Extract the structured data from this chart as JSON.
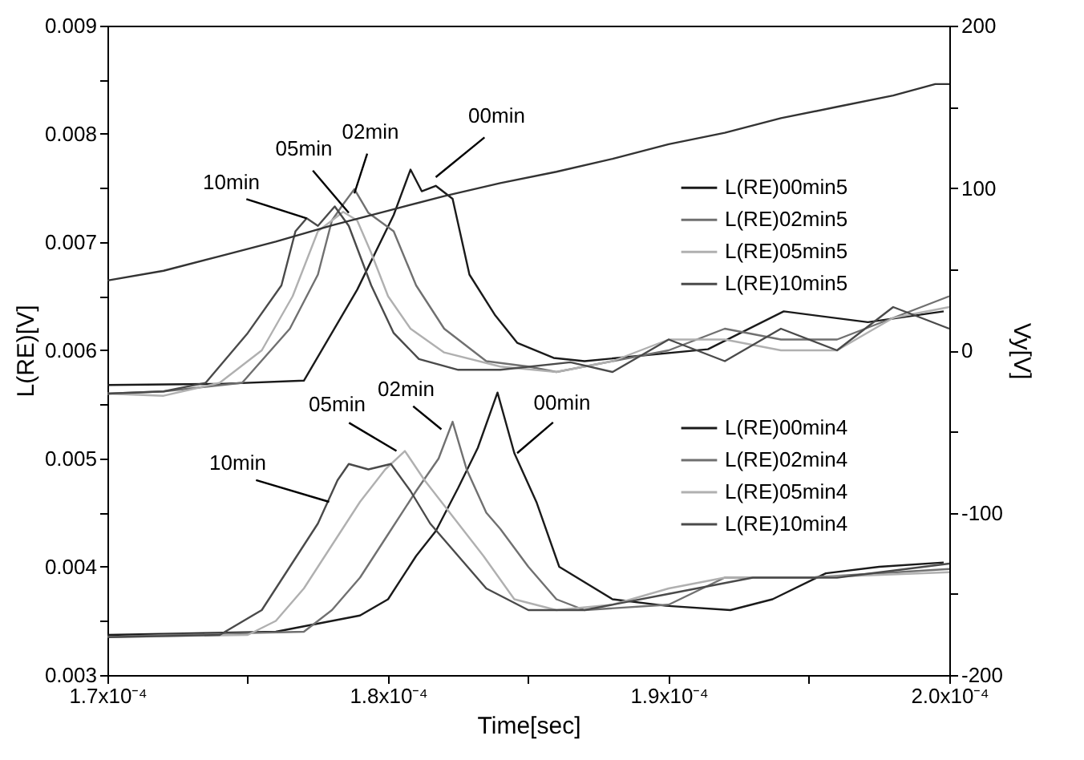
{
  "chart_data": {
    "type": "line",
    "xlabel": "Time[sec]",
    "ylabel": "L(RE)[V]",
    "y2label": "Vy[V]",
    "legend": "right",
    "xlim": [
      0.00017,
      0.0002
    ],
    "xticks": [
      {
        "value": 0.00017,
        "label": "1.7x10⁻⁴"
      },
      {
        "value": 0.000175,
        "label": null
      },
      {
        "value": 0.00018,
        "label": "1.8x10⁻⁴"
      },
      {
        "value": 0.000185,
        "label": null
      },
      {
        "value": 0.00019,
        "label": "1.9x10⁻⁴"
      },
      {
        "value": 0.000195,
        "label": null
      },
      {
        "value": 0.0002,
        "label": "2.0x10⁻⁴"
      }
    ],
    "ylim": [
      0.003,
      0.009
    ],
    "yticks": [
      0.003,
      {
        "value": 0.0035,
        "label": null
      },
      0.004,
      {
        "value": 0.0045,
        "label": null
      },
      0.005,
      {
        "value": 0.0055,
        "label": null
      },
      0.006,
      {
        "value": 0.0065,
        "label": null
      },
      0.007,
      {
        "value": 0.0075,
        "label": null
      },
      0.008,
      {
        "value": 0.0085,
        "label": null
      },
      0.009
    ],
    "y2lim": [
      -200,
      200
    ],
    "y2ticks": [
      -200,
      {
        "value": -150,
        "label": null
      },
      -100,
      {
        "value": -50,
        "label": null
      },
      0,
      {
        "value": 50,
        "label": null
      },
      100,
      {
        "value": 150,
        "label": null
      },
      200
    ],
    "series": [
      {
        "name": "L(RE)00min5",
        "color": "#1a1a1a",
        "x": [
          0.00017,
          0.000174,
          0.000177,
          0.0001789,
          0.0001802,
          0.0001808,
          0.0001812,
          0.0001817,
          0.0001823,
          0.0001829,
          0.0001838,
          0.0001846,
          0.0001859,
          0.000187,
          0.0001914,
          0.0001941,
          0.0001971,
          0.0001998
        ],
        "values": [
          0.00568,
          0.00569,
          0.00572,
          0.00656,
          0.00725,
          0.00767,
          0.00747,
          0.00752,
          0.0074,
          0.0067,
          0.00633,
          0.00607,
          0.00593,
          0.0059,
          0.00601,
          0.00636,
          0.00626,
          0.00636
        ]
      },
      {
        "name": "L(RE)02min5",
        "color": "#707070",
        "x": [
          0.00017,
          0.000172,
          0.0001748,
          0.0001765,
          0.0001775,
          0.000178,
          0.0001784,
          0.0001788,
          0.0001793,
          0.0001802,
          0.000181,
          0.000182,
          0.0001835,
          0.000185,
          0.000186,
          0.000188,
          0.00019,
          0.000192,
          0.000194,
          0.000196,
          0.000198,
          0.0002
        ],
        "values": [
          0.0056,
          0.00562,
          0.0057,
          0.0062,
          0.0067,
          0.0072,
          0.00735,
          0.00749,
          0.00727,
          0.0071,
          0.0066,
          0.0062,
          0.0059,
          0.00585,
          0.0058,
          0.0059,
          0.006,
          0.0062,
          0.0061,
          0.0061,
          0.0063,
          0.0065
        ]
      },
      {
        "name": "L(RE)05min5",
        "color": "#b0b0b0",
        "x": [
          0.00017,
          0.000172,
          0.000174,
          0.0001755,
          0.0001766,
          0.0001775,
          0.0001784,
          0.0001789,
          0.0001794,
          0.00018,
          0.0001808,
          0.000182,
          0.000184,
          0.000186,
          0.000188,
          0.00019,
          0.000192,
          0.000194,
          0.000196,
          0.000198,
          0.0002
        ],
        "values": [
          0.0056,
          0.00558,
          0.0057,
          0.006,
          0.0065,
          0.0071,
          0.00728,
          0.0072,
          0.0069,
          0.0065,
          0.0062,
          0.00598,
          0.00585,
          0.0058,
          0.0059,
          0.0061,
          0.0061,
          0.006,
          0.006,
          0.0063,
          0.0064
        ]
      },
      {
        "name": "L(RE)10min5",
        "color": "#4a4a4a",
        "x": [
          0.00017,
          0.000172,
          0.0001735,
          0.000175,
          0.0001762,
          0.0001767,
          0.0001771,
          0.0001775,
          0.0001781,
          0.0001786,
          0.0001794,
          0.0001802,
          0.0001811,
          0.0001825,
          0.000184,
          0.0001865,
          0.000188,
          0.00019,
          0.000192,
          0.000194,
          0.000196,
          0.000198,
          0.0002
        ],
        "values": [
          0.0056,
          0.00562,
          0.0057,
          0.00616,
          0.0066,
          0.0071,
          0.00722,
          0.00715,
          0.00733,
          0.00715,
          0.0066,
          0.00616,
          0.00592,
          0.00582,
          0.00582,
          0.00589,
          0.0058,
          0.0061,
          0.0059,
          0.0062,
          0.006,
          0.0064,
          0.0062
        ]
      },
      {
        "name": "L(RE)00min4",
        "color": "#1a1a1a",
        "x": [
          0.00017,
          0.000176,
          0.000179,
          0.00018,
          0.000181,
          0.0001817,
          0.0001825,
          0.0001832,
          0.0001839,
          0.0001845,
          0.0001853,
          0.0001861,
          0.000188,
          0.0001899,
          0.0001922,
          0.0001937,
          0.0001956,
          0.0001975,
          0.0001998
        ],
        "values": [
          0.00337,
          0.0034,
          0.00355,
          0.0037,
          0.0041,
          0.00433,
          0.00473,
          0.0051,
          0.00561,
          0.00505,
          0.00459,
          0.004,
          0.0037,
          0.00364,
          0.0036,
          0.0037,
          0.00394,
          0.004,
          0.00404
        ]
      },
      {
        "name": "L(RE)02min4",
        "color": "#707070",
        "x": [
          0.00017,
          0.000172,
          0.000177,
          0.000178,
          0.000179,
          0.00018,
          0.000181,
          0.0001818,
          0.0001823,
          0.0001828,
          0.0001835,
          0.000184,
          0.000185,
          0.000186,
          0.000187,
          0.00019,
          0.000192,
          0.000195,
          0.0002
        ],
        "values": [
          0.00335,
          0.00337,
          0.0034,
          0.0036,
          0.0039,
          0.0043,
          0.0047,
          0.005,
          0.00534,
          0.0049,
          0.0045,
          0.00435,
          0.004,
          0.0037,
          0.0036,
          0.00365,
          0.0039,
          0.0039,
          0.00398
        ]
      },
      {
        "name": "L(RE)05min4",
        "color": "#b0b0b0",
        "x": [
          0.00017,
          0.000175,
          0.000176,
          0.000177,
          0.000178,
          0.000179,
          0.0001799,
          0.0001806,
          0.0001813,
          0.0001825,
          0.0001834,
          0.0001845,
          0.000186,
          0.000188,
          0.00019,
          0.000192,
          0.000195,
          0.0002
        ],
        "values": [
          0.00335,
          0.00337,
          0.0035,
          0.0038,
          0.0042,
          0.0046,
          0.0049,
          0.00507,
          0.0048,
          0.0044,
          0.0041,
          0.0037,
          0.0036,
          0.00365,
          0.0038,
          0.0039,
          0.0039,
          0.00395
        ]
      },
      {
        "name": "L(RE)10min4",
        "color": "#4a4a4a",
        "x": [
          0.00017,
          0.000174,
          0.0001755,
          0.0001765,
          0.0001775,
          0.0001782,
          0.0001786,
          0.0001793,
          0.0001801,
          0.0001808,
          0.0001815,
          0.0001825,
          0.0001835,
          0.000185,
          0.000187,
          0.00019,
          0.000193,
          0.000196,
          0.0002
        ],
        "values": [
          0.00335,
          0.00337,
          0.0036,
          0.004,
          0.0044,
          0.0048,
          0.00495,
          0.0049,
          0.00495,
          0.0047,
          0.0044,
          0.0041,
          0.0038,
          0.0036,
          0.0036,
          0.00375,
          0.0039,
          0.0039,
          0.00403
        ]
      },
      {
        "color": "#333333",
        "axis": "y2",
        "x": [
          0.00017,
          0.000172,
          0.000174,
          0.000176,
          0.000178,
          0.00018,
          0.000182,
          0.000184,
          0.000186,
          0.000188,
          0.00019,
          0.000192,
          0.000194,
          0.000196,
          0.000198,
          0.0001995,
          0.0002
        ],
        "values": [
          43,
          49,
          58,
          67,
          77,
          86,
          95,
          103,
          110,
          118,
          127,
          134,
          143,
          150,
          157,
          164,
          164
        ]
      }
    ],
    "annotations": [
      {
        "text": "10min",
        "x": 0.0001771,
        "y": 0.00722
      },
      {
        "text": "05min",
        "x": 0.0001786,
        "y": 0.00727
      },
      {
        "text": "02min",
        "x": 0.0001788,
        "y": 0.00745
      },
      {
        "text": "00min",
        "x": 0.0001817,
        "y": 0.0076
      },
      {
        "text": "10min",
        "x": 0.0001779,
        "y": 0.0046
      },
      {
        "text": "05min",
        "x": 0.0001803,
        "y": 0.00507
      },
      {
        "text": "02min",
        "x": 0.0001819,
        "y": 0.00527
      },
      {
        "text": "00min",
        "x": 0.0001846,
        "y": 0.00505
      }
    ]
  }
}
